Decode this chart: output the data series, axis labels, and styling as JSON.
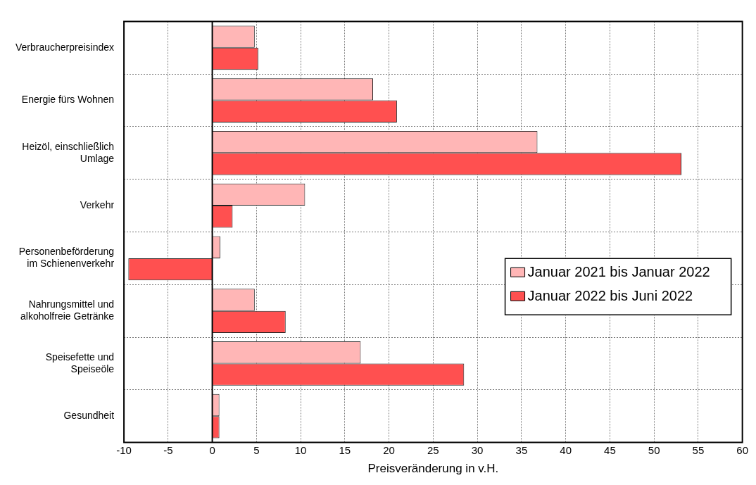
{
  "chart_data": {
    "type": "bar",
    "orientation": "horizontal",
    "xlabel": "Preisveränderung in v.H.",
    "categories": [
      "Verbraucherpreisindex",
      "Energie fürs Wohnen",
      "Heizöl, einschließlich\nUmlage",
      "Verkehr",
      "Personenbeförderung\nim Schienenverkehr",
      "Nahrungsmittel und\nalkoholfreie Getränke",
      "Speisefette und\nSpeiseöle",
      "Gesundheit"
    ],
    "series": [
      {
        "name": "Januar 2021 bis Januar 2022",
        "color": "#ffb6b6",
        "values": [
          4.8,
          18.2,
          36.8,
          10.5,
          0.9,
          4.8,
          16.8,
          0.8
        ]
      },
      {
        "name": "Januar 2022 bis Juni 2022",
        "color": "#ff5050",
        "values": [
          5.2,
          20.9,
          53.1,
          2.3,
          -9.5,
          8.3,
          28.5,
          0.8
        ]
      }
    ],
    "xlim": [
      -10,
      60
    ],
    "xticks": [
      -10,
      -5,
      0,
      5,
      10,
      15,
      20,
      25,
      30,
      35,
      40,
      45,
      50,
      55,
      60
    ],
    "grid": true,
    "legend": "right"
  }
}
